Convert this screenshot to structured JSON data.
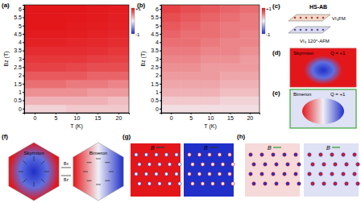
{
  "chart_data": [
    {
      "type": "heatmap",
      "title": "(a)",
      "x_label": "T (K)",
      "y_label": "Bz (T)",
      "x": [
        0,
        5,
        10,
        15,
        20
      ],
      "y": [
        0,
        0.5,
        1,
        1.5,
        2,
        2.5,
        3,
        3.5,
        4,
        4.5,
        5,
        5.5,
        6
      ],
      "xlim": [
        -2.5,
        22.5
      ],
      "ylim": [
        -0.25,
        6.25
      ],
      "xticks": [
        0,
        5,
        10,
        15,
        20
      ],
      "yticks": [
        0,
        0.5,
        1,
        1.5,
        2,
        2.5,
        3,
        3.5,
        4,
        4.5,
        5,
        5.5,
        6
      ],
      "cells": [
        [
          0.15,
          0.15,
          0.2,
          0.2,
          0.2
        ],
        [
          0.3,
          0.3,
          0.3,
          0.3,
          0.25
        ],
        [
          0.45,
          0.45,
          0.45,
          0.4,
          0.4
        ],
        [
          0.6,
          0.6,
          0.55,
          0.55,
          0.5
        ],
        [
          0.7,
          0.7,
          0.7,
          0.65,
          0.65
        ],
        [
          0.8,
          0.8,
          0.78,
          0.75,
          0.75
        ],
        [
          0.85,
          0.85,
          0.85,
          0.82,
          0.8
        ],
        [
          0.9,
          0.9,
          0.9,
          0.88,
          0.85
        ],
        [
          0.95,
          0.95,
          0.93,
          0.92,
          0.9
        ],
        [
          0.98,
          0.98,
          0.97,
          0.95,
          0.93
        ],
        [
          1,
          1,
          0.98,
          0.97,
          0.95
        ],
        [
          1,
          1,
          0.99,
          0.98,
          0.96
        ],
        [
          1,
          1,
          1,
          0.98,
          0.97
        ]
      ],
      "colorbar": {
        "range": [
          -1,
          1
        ],
        "ticks": [
          {
            "value": 1,
            "label": "+1"
          },
          {
            "value": -1,
            "label": "-1"
          }
        ]
      }
    },
    {
      "type": "heatmap",
      "title": "(b)",
      "x_label": "T (K)",
      "y_label": "Bz (T)",
      "x": [
        0,
        5,
        10,
        15,
        20
      ],
      "y": [
        0,
        0.5,
        1,
        1.5,
        2,
        2.5,
        3,
        3.5,
        4,
        4.5,
        5,
        5.5,
        6
      ],
      "xlim": [
        -2.5,
        22.5
      ],
      "ylim": [
        -0.25,
        6.25
      ],
      "xticks": [
        0,
        5,
        10,
        15,
        20
      ],
      "yticks": [
        0,
        0.5,
        1,
        1.5,
        2,
        2.5,
        3,
        3.5,
        4,
        4.5,
        5,
        5.5,
        6
      ],
      "cells": [
        [
          0.1,
          0.1,
          0.1,
          0.1,
          0.1
        ],
        [
          0.2,
          0.2,
          0.2,
          0.15,
          0.15
        ],
        [
          0.3,
          0.3,
          0.3,
          0.25,
          0.25
        ],
        [
          0.35,
          0.35,
          0.35,
          0.3,
          0.3
        ],
        [
          0.4,
          0.4,
          0.4,
          0.35,
          0.35
        ],
        [
          0.45,
          0.45,
          0.4,
          0.4,
          0.4
        ],
        [
          0.5,
          0.5,
          0.45,
          0.45,
          0.4
        ],
        [
          0.55,
          0.55,
          0.5,
          0.5,
          0.45
        ],
        [
          0.6,
          0.6,
          0.55,
          0.5,
          0.5
        ],
        [
          0.65,
          0.6,
          0.6,
          0.55,
          0.5
        ],
        [
          0.7,
          0.65,
          0.6,
          0.55,
          0.55
        ],
        [
          0.75,
          0.7,
          0.65,
          0.6,
          0.55
        ],
        [
          0.8,
          0.75,
          0.7,
          0.65,
          0.6
        ]
      ],
      "colorbar": {
        "range": [
          -1,
          1
        ],
        "ticks": [
          {
            "value": 1,
            "label": "+1"
          },
          {
            "value": -1,
            "label": "-1"
          }
        ]
      }
    }
  ],
  "panels": {
    "c": {
      "label": "(c)",
      "title": "HS-AB",
      "top_layer": "VI₃FM",
      "bottom_layer": "VI₃ 120°-AFM"
    },
    "d": {
      "label": "(d)",
      "name": "Skyrmion",
      "charge": "Q = +1"
    },
    "e": {
      "label": "(e)",
      "name": "Bimeron",
      "charge": "Q = +1"
    },
    "f": {
      "label": "(f)",
      "left": "Skyrmion",
      "right": "Bimeron",
      "field_x": "Bx",
      "field_z": "Bz"
    },
    "g": {
      "label": "(g)",
      "field": "B"
    },
    "h": {
      "label": "(h)",
      "field": "B"
    }
  }
}
